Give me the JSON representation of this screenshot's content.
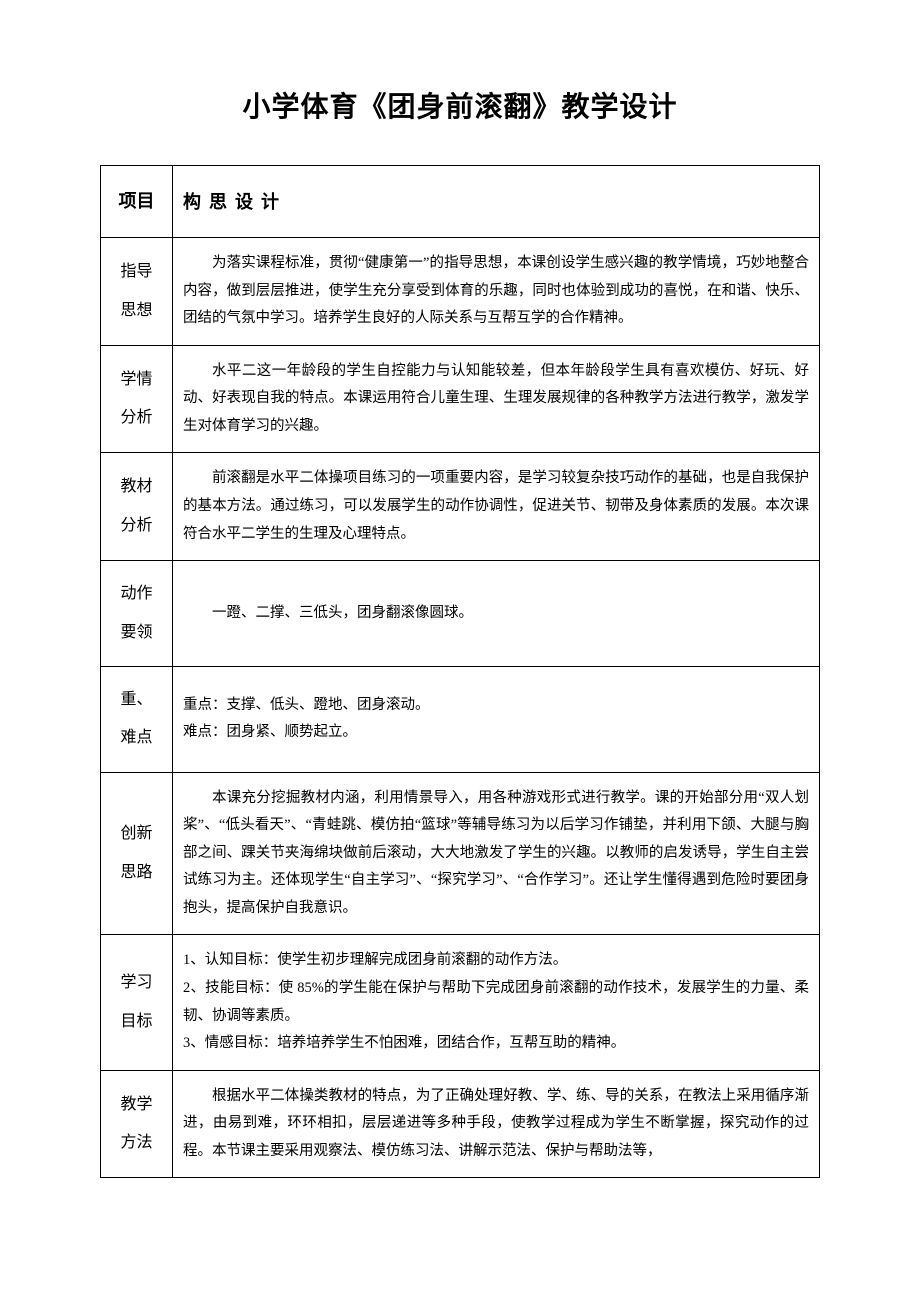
{
  "title": "小学体育《团身前滚翻》教学设计",
  "table": {
    "header": {
      "col1": "项目",
      "col2": "构思设计"
    },
    "rows": [
      {
        "label": "指导\n思想",
        "content_class": "indent",
        "content": "为落实课程标准，贯彻“健康第一”的指导思想，本课创设学生感兴趣的教学情境，巧妙地整合内容，做到层层推进，使学生充分享受到体育的乐趣，同时也体验到成功的喜悦，在和谐、快乐、团结的气氛中学习。培养学生良好的人际关系与互帮互学的合作精神。"
      },
      {
        "label": "学情\n分析",
        "content_class": "indent",
        "content": "水平二这一年龄段的学生自控能力与认知能较差，但本年龄段学生具有喜欢模仿、好玩、好动、好表现自我的特点。本课运用符合儿童生理、生理发展规律的各种教学方法进行教学，激发学生对体育学习的兴趣。"
      },
      {
        "label": "教材\n分析",
        "content_class": "indent",
        "content": "前滚翻是水平二体操项目练习的一项重要内容，是学习较复杂技巧动作的基础，也是自我保护的基本方法。通过练习，可以发展学生的动作协调性，促进关节、韧带及身体素质的发展。本次课符合水平二学生的生理及心理特点。"
      },
      {
        "label": "动作\n要领",
        "content_class": "indent",
        "content": "一蹬、二撑、三低头，团身翻滚像圆球。"
      },
      {
        "label": "重、\n难点",
        "content_class": "no-indent",
        "content": "重点：支撑、低头、蹬地、团身滚动。\n难点：团身紧、顺势起立。"
      },
      {
        "label": "创新\n思路",
        "content_class": "indent",
        "content": "本课充分挖掘教材内涵，利用情景导入，用各种游戏形式进行教学。课的开始部分用“双人划桨”、“低头看天”、“青蛙跳、模仿拍“篮球”等辅导练习为以后学习作铺垫，并利用下颌、大腿与胸部之间、踝关节夹海绵块做前后滚动，大大地激发了学生的兴趣。以教师的启发诱导，学生自主尝试练习为主。还体现学生“自主学习”、“探究学习”、“合作学习”。还让学生懂得遇到危险时要团身抱头，提高保护自我意识。"
      },
      {
        "label": "学习\n目标",
        "content_class": "no-indent",
        "content": "1、认知目标：使学生初步理解完成团身前滚翻的动作方法。\n2、技能目标：使 85%的学生能在保护与帮助下完成团身前滚翻的动作技术，发展学生的力量、柔韧、协调等素质。\n3、情感目标：培养培养学生不怕困难，团结合作，互帮互助的精神。"
      },
      {
        "label": "教学\n方法",
        "content_class": "indent",
        "content": "根据水平二体操类教材的特点，为了正确处理好教、学、练、导的关系，在教法上采用循序渐进，由易到难，环环相扣，层层递进等多种手段，使教学过程成为学生不断掌握，探究动作的过程。本节课主要采用观察法、模仿练习法、讲解示范法、保护与帮助法等，"
      }
    ]
  }
}
